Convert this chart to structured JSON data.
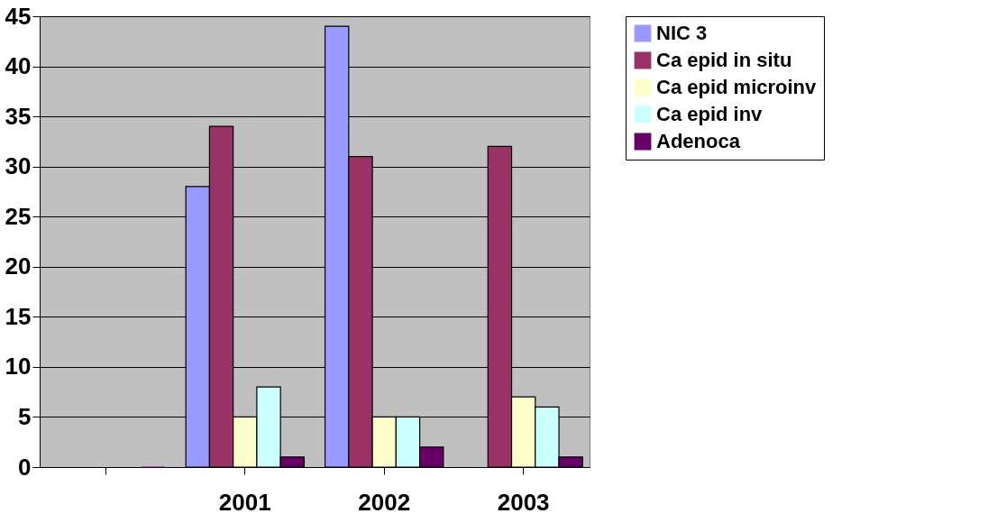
{
  "chart_data": {
    "type": "bar",
    "categories": [
      null,
      "2001",
      "2002",
      "2003"
    ],
    "series": [
      {
        "name": "NIC 3",
        "color": "#9999ff",
        "values": [
          null,
          28,
          44,
          null
        ]
      },
      {
        "name": "Ca epid in situ",
        "color": "#993366",
        "values": [
          null,
          34,
          31,
          32
        ]
      },
      {
        "name": "Ca epid microinv",
        "color": "#ffffcc",
        "values": [
          null,
          5,
          5,
          7
        ]
      },
      {
        "name": "Ca epid inv",
        "color": "#ccffff",
        "values": [
          null,
          8,
          5,
          6
        ]
      },
      {
        "name": "Adenoca",
        "color": "#660066",
        "values": [
          0,
          1,
          2,
          1
        ]
      }
    ],
    "ylim": [
      0,
      45
    ],
    "yticks": [
      0,
      5,
      10,
      15,
      20,
      25,
      30,
      35,
      40,
      45
    ],
    "grid": "y",
    "legend": "right"
  }
}
